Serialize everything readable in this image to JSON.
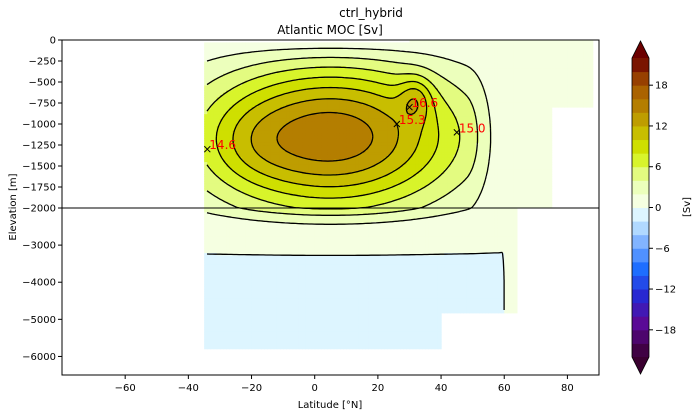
{
  "chart_data": {
    "type": "contour",
    "suptitle": "ctrl_hybrid",
    "title": "Atlantic MOC [Sv]",
    "xlabel": "Latitude [°N]",
    "ylabel": "Elevation [m]",
    "xlim": [
      -80,
      90
    ],
    "x_ticks": [
      -60,
      -40,
      -20,
      0,
      20,
      40,
      60,
      80
    ],
    "y_ticks_upper": [
      0,
      -250,
      -500,
      -750,
      -1000,
      -1250,
      -1500,
      -1750,
      -2000
    ],
    "y_ticks_lower": [
      -2000,
      -3000,
      -4000,
      -5000,
      -6000
    ],
    "y_break": -2000,
    "colorbar": {
      "label": "[Sv]",
      "range": [
        -22,
        22
      ],
      "step": 2,
      "ticks": [
        18,
        12,
        6,
        0,
        -6,
        -12,
        -18
      ],
      "extend": "both",
      "color_min": "#3a0030",
      "color_max": "#6b0000"
    },
    "annotations": [
      {
        "label": "14.6",
        "lat": -34,
        "depth": -1300
      },
      {
        "label": "15.3",
        "lat": 26,
        "depth": -1000
      },
      {
        "label": "16.6",
        "lat": 30,
        "depth": -800
      },
      {
        "label": "15.0",
        "lat": 45,
        "depth": -1100
      }
    ]
  }
}
